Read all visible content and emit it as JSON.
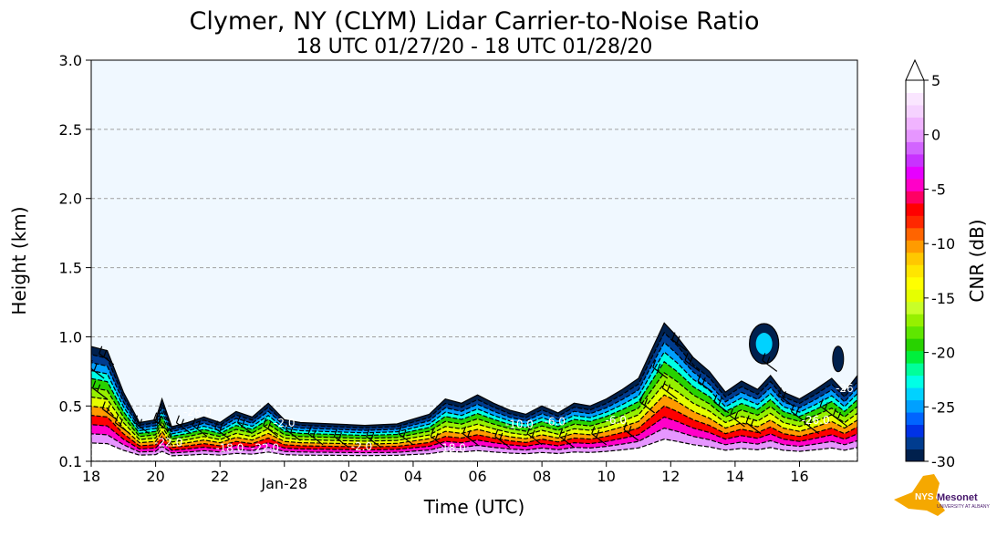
{
  "chart_data": {
    "type": "heatmap",
    "title": "Clymer, NY (CLYM) Lidar Carrier-to-Noise Ratio",
    "subtitle": "18 UTC 01/27/20 - 18 UTC 01/28/20",
    "xlabel": "Time (UTC)",
    "ylabel": "Height (km)",
    "x_tick_labels": [
      "18",
      "20",
      "22",
      "Jan-28",
      "02",
      "04",
      "06",
      "08",
      "10",
      "12",
      "14",
      "16"
    ],
    "x_tick_hours": [
      0,
      2,
      4,
      6,
      8,
      10,
      12,
      14,
      16,
      18,
      20,
      22
    ],
    "xlim_hours": [
      0,
      23.8
    ],
    "y_ticks": [
      0.1,
      0.5,
      1.0,
      1.5,
      2.0,
      2.5,
      3.0
    ],
    "y_tick_labels": [
      "0.1",
      "0.5",
      "1.0",
      "1.5",
      "2.0",
      "2.5",
      "3.0"
    ],
    "ylim": [
      0.1,
      3.0
    ],
    "grid": "horizontal dashed",
    "colorbar": {
      "label": "CNR (dB)",
      "range": [
        -30,
        5
      ],
      "ticks": [
        5,
        0,
        -5,
        -10,
        -15,
        -20,
        -25,
        -30
      ],
      "tick_labels": [
        "5",
        "0",
        "-5",
        "-10",
        "-15",
        "-20",
        "-25",
        "-30"
      ],
      "colors": [
        "#00204d",
        "#003c8f",
        "#0032e6",
        "#0064ff",
        "#00a0ff",
        "#00d2ff",
        "#00ffe6",
        "#00ff9b",
        "#00f03c",
        "#28d200",
        "#5fe600",
        "#96f000",
        "#c8ff28",
        "#e6ff00",
        "#ffff00",
        "#ffe600",
        "#ffc800",
        "#ff9b00",
        "#ff6400",
        "#ff2800",
        "#ff0000",
        "#ff0064",
        "#ff00c8",
        "#e600ff",
        "#c832ff",
        "#d264ff",
        "#e696ff",
        "#f0b4ff",
        "#f5d2ff",
        "#fae6ff",
        "#ffffff"
      ]
    },
    "contour_labels": [
      {
        "text": "-26.0",
        "hour": 3.3,
        "height": 0.43
      },
      {
        "text": "-22.0",
        "hour": 2.4,
        "height": 0.21
      },
      {
        "text": "-18.0",
        "hour": 4.3,
        "height": 0.17
      },
      {
        "text": "-22.0",
        "hour": 5.4,
        "height": 0.17
      },
      {
        "text": "-2.0",
        "hour": 6.0,
        "height": 0.35
      },
      {
        "text": "-2.0",
        "hour": 8.4,
        "height": 0.18
      },
      {
        "text": "-18.0",
        "hour": 11.2,
        "height": 0.17
      },
      {
        "text": "-10.0",
        "hour": 13.3,
        "height": 0.34
      },
      {
        "text": "-6.0",
        "hour": 14.4,
        "height": 0.36
      },
      {
        "text": "-6.0",
        "hour": 16.3,
        "height": 0.37
      },
      {
        "text": "-26.0",
        "hour": 22.5,
        "height": 0.37
      },
      {
        "text": "-26",
        "hour": 23.4,
        "height": 0.6
      }
    ]
  },
  "logo": {
    "text": "NYS Mesonet",
    "subtext": "UNIVERSITY AT ALBANY",
    "nys_color": "#f5a800",
    "mesonet_color": "#46166b"
  }
}
